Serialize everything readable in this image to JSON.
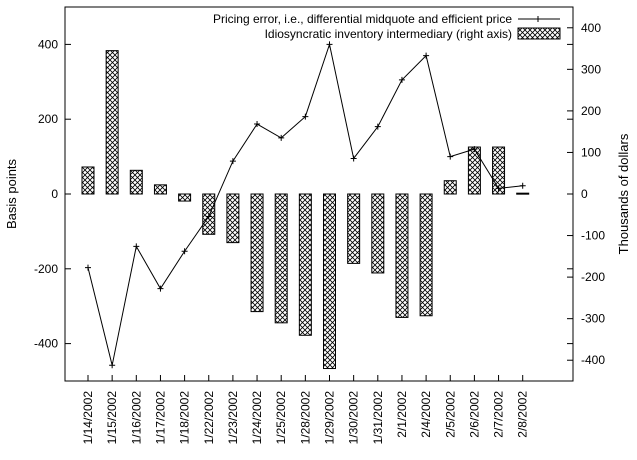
{
  "chart_data": {
    "type": "bar",
    "title": "",
    "ylabel_left": "Basis points",
    "ylabel_right": "Thousands of dollars",
    "ylim_left": [
      -500,
      500
    ],
    "ylim_right": [
      -450,
      450
    ],
    "yticks_left": [
      -400,
      -200,
      0,
      200,
      400
    ],
    "yticks_right": [
      -400,
      -300,
      -200,
      -100,
      0,
      100,
      200,
      300,
      400
    ],
    "legend_position": "top-right",
    "grid": false,
    "categories": [
      "1/14/2002",
      "1/15/2002",
      "1/16/2002",
      "1/17/2002",
      "1/18/2002",
      "1/22/2002",
      "1/23/2002",
      "1/24/2002",
      "1/25/2002",
      "1/28/2002",
      "1/29/2002",
      "1/30/2002",
      "1/31/2002",
      "2/1/2002",
      "2/4/2002",
      "2/5/2002",
      "2/6/2002",
      "2/7/2002",
      "2/8/2002"
    ],
    "series": [
      {
        "name": "Pricing error, i.e., differential midquote and efficient price",
        "type": "line",
        "axis": "left",
        "values": [
          -197,
          -458,
          -140,
          -253,
          -153,
          -60,
          88,
          187,
          150,
          207,
          400,
          95,
          180,
          305,
          370,
          100,
          120,
          15,
          22
        ]
      },
      {
        "name": "Idiosyncratic inventory intermediary (right axis)",
        "type": "bar",
        "axis": "right",
        "values": [
          65,
          345,
          57,
          22,
          -17,
          -97,
          -117,
          -283,
          -310,
          -340,
          -420,
          -167,
          -190,
          -297,
          -293,
          32,
          113,
          113,
          2
        ]
      }
    ]
  }
}
